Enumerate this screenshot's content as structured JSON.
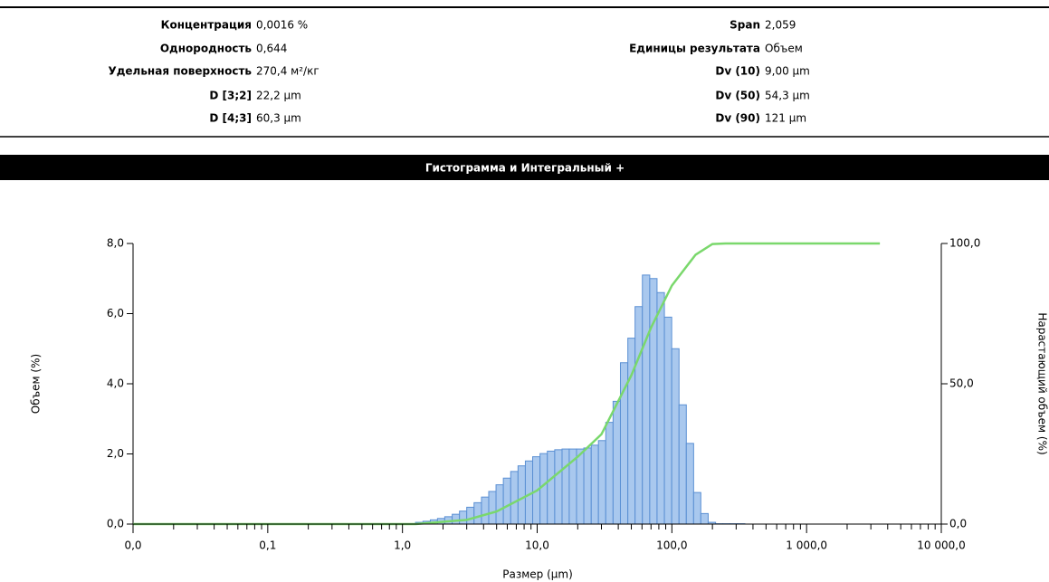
{
  "summary": {
    "left": [
      {
        "label": "Концентрация",
        "value": "0,0016 %"
      },
      {
        "label": "Однородность",
        "value": "0,644"
      },
      {
        "label": "Удельная поверхность",
        "value": "270,4 м²/кг"
      },
      {
        "label": "D [3;2]",
        "value": "22,2 µm"
      },
      {
        "label": "D [4;3]",
        "value": "60,3 µm"
      }
    ],
    "right": [
      {
        "label": "Span",
        "value": "2,059"
      },
      {
        "label": "Единицы результата",
        "value": "Объем"
      },
      {
        "label": "Dv (10)",
        "value": "9,00 µm"
      },
      {
        "label": "Dv (50)",
        "value": "54,3 µm"
      },
      {
        "label": "Dv (90)",
        "value": "121 µm"
      }
    ]
  },
  "section_title": "Гистограмма и Интегральный +",
  "chart_data": {
    "type": "histogram",
    "xlabel": "Размер (µm)",
    "ylabel": "Объем (%)",
    "y2label": "Нарастающий объем (%)",
    "xscale": "log",
    "xlim": [
      0.01,
      10000
    ],
    "xticks": [
      {
        "value": 0.01,
        "label": "0,0"
      },
      {
        "value": 0.1,
        "label": "0,1"
      },
      {
        "value": 1,
        "label": "1,0"
      },
      {
        "value": 10,
        "label": "10,0"
      },
      {
        "value": 100,
        "label": "100,0"
      },
      {
        "value": 1000,
        "label": "1 000,0"
      },
      {
        "value": 10000,
        "label": "10 000,0"
      }
    ],
    "ylim": [
      0,
      8
    ],
    "yticks": [
      {
        "value": 0,
        "label": "0,0"
      },
      {
        "value": 2,
        "label": "2,0"
      },
      {
        "value": 4,
        "label": "4,0"
      },
      {
        "value": 6,
        "label": "6,0"
      },
      {
        "value": 8,
        "label": "8,0"
      }
    ],
    "y2lim": [
      0,
      100
    ],
    "y2ticks": [
      {
        "value": 0,
        "label": "0,0"
      },
      {
        "value": 50,
        "label": "50,0"
      },
      {
        "value": 100,
        "label": "100,0"
      }
    ],
    "bins": [
      1.25,
      1.42,
      1.61,
      1.82,
      2.06,
      2.34,
      2.65,
      3.0,
      3.4,
      3.86,
      4.37,
      4.95,
      5.61,
      6.36,
      7.21,
      8.17,
      9.26,
      10.5,
      11.9,
      13.5,
      15.3,
      17.3,
      19.6,
      22.2,
      25.2,
      28.5,
      32.3,
      36.6,
      41.5,
      47.1,
      53.3,
      60.4,
      68.5,
      77.6,
      88.0,
      99.7,
      113,
      128,
      145,
      164,
      186,
      211,
      239,
      271,
      307,
      348
    ],
    "counts": [
      0.05,
      0.08,
      0.12,
      0.16,
      0.21,
      0.28,
      0.37,
      0.48,
      0.61,
      0.77,
      0.93,
      1.12,
      1.31,
      1.5,
      1.66,
      1.8,
      1.92,
      2.01,
      2.08,
      2.12,
      2.14,
      2.14,
      2.14,
      2.17,
      2.25,
      2.38,
      2.9,
      3.5,
      4.6,
      5.3,
      6.2,
      7.1,
      7.0,
      6.6,
      5.9,
      5.0,
      3.4,
      2.3,
      0.9,
      0.3,
      0.05,
      0.01,
      0.01,
      0.01,
      0.01
    ],
    "color": "#a9c8ee",
    "edgecolor": "#5a8fd3",
    "cumulative": {
      "axis": "y2",
      "color": "#7ad86c",
      "x": [
        0.01,
        1.25,
        3.0,
        5.0,
        10,
        20,
        30,
        50,
        70,
        100,
        150,
        200,
        250,
        3500
      ],
      "values": [
        0,
        0,
        1.5,
        4.5,
        12,
        24,
        32,
        53,
        70,
        85,
        96,
        99.8,
        100,
        100
      ]
    }
  }
}
